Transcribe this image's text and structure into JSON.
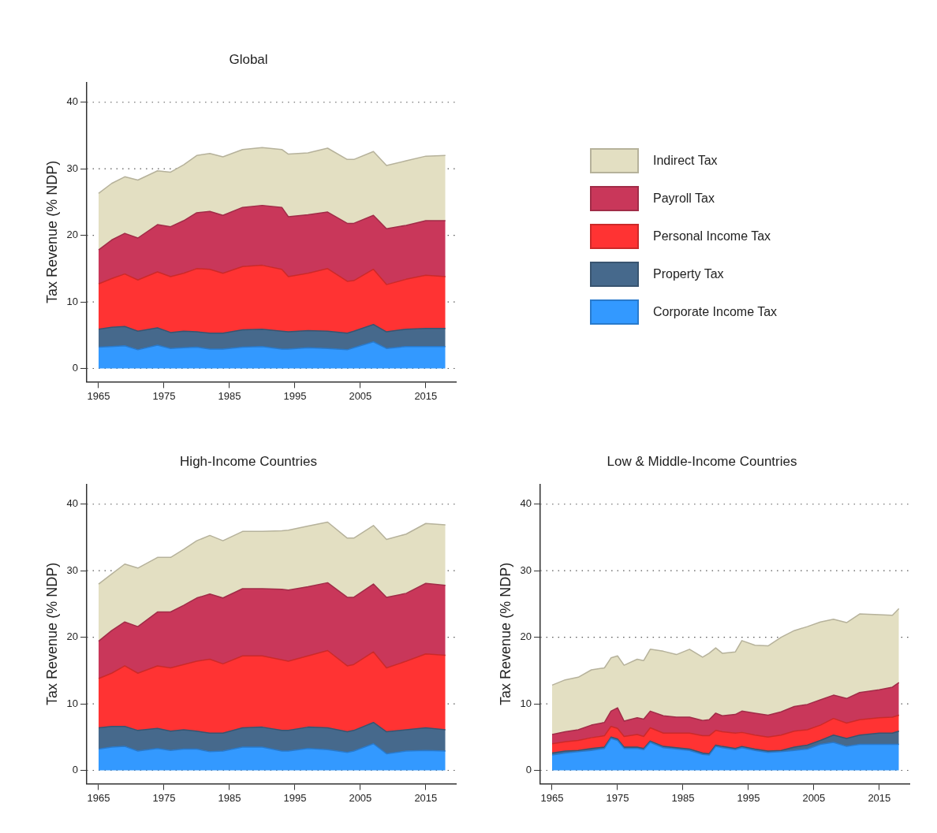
{
  "chart_data": [
    {
      "type": "area",
      "stacked": true,
      "title": "Global",
      "ylabel": "Tax Revenue (% NDP)",
      "legend": "right",
      "grid": "y",
      "xlim": [
        1963.2,
        2019.6
      ],
      "ylim": [
        -2,
        43
      ],
      "xticks": [
        1965,
        1975,
        1985,
        1995,
        2005,
        2015
      ],
      "yticks": [
        0,
        10,
        20,
        30,
        40
      ],
      "x": [
        1965,
        1967,
        1969,
        1971,
        1974,
        1976,
        1978,
        1980,
        1982,
        1984,
        1987,
        1990,
        1993,
        1994,
        1997,
        2000,
        2003,
        2004,
        2007,
        2009,
        2012,
        2015,
        2018
      ],
      "series": [
        {
          "name": "Corporate Income Tax",
          "color": "#3399ff",
          "values": [
            3.2,
            3.3,
            3.4,
            2.8,
            3.5,
            3.0,
            3.1,
            3.2,
            2.9,
            2.9,
            3.2,
            3.3,
            2.9,
            2.9,
            3.1,
            3.0,
            2.8,
            3.1,
            4.0,
            3.0,
            3.3,
            3.3,
            3.3
          ]
        },
        {
          "name": "Property Tax",
          "color": "#46698c",
          "values": [
            2.7,
            2.9,
            2.9,
            2.8,
            2.6,
            2.4,
            2.5,
            2.3,
            2.4,
            2.4,
            2.6,
            2.6,
            2.7,
            2.6,
            2.6,
            2.6,
            2.5,
            2.5,
            2.6,
            2.5,
            2.6,
            2.7,
            2.7
          ]
        },
        {
          "name": "Personal Income Tax",
          "color": "#ff3333",
          "values": [
            6.8,
            7.3,
            7.9,
            7.7,
            8.4,
            8.4,
            8.7,
            9.5,
            9.6,
            9.0,
            9.5,
            9.6,
            9.3,
            8.3,
            8.6,
            9.4,
            7.8,
            7.6,
            8.3,
            7.1,
            7.5,
            8.0,
            7.8
          ]
        },
        {
          "name": "Payroll Tax",
          "color": "#c9375a",
          "values": [
            5.1,
            5.8,
            6.1,
            6.3,
            7.1,
            7.5,
            7.9,
            8.4,
            8.7,
            8.7,
            8.9,
            9.0,
            9.3,
            9.0,
            8.8,
            8.5,
            8.7,
            8.6,
            8.1,
            8.4,
            8.1,
            8.2,
            8.4
          ]
        },
        {
          "name": "Indirect Tax",
          "color": "#e3dfc2",
          "values": [
            8.5,
            8.5,
            8.5,
            8.7,
            8.1,
            8.2,
            8.4,
            8.6,
            8.7,
            8.8,
            8.7,
            8.7,
            8.7,
            9.4,
            9.3,
            9.6,
            9.6,
            9.6,
            9.6,
            9.5,
            9.7,
            9.7,
            9.8
          ]
        }
      ]
    },
    {
      "type": "area",
      "stacked": true,
      "title": "High-Income Countries",
      "ylabel": "Tax Revenue (% NDP)",
      "grid": "y",
      "xlim": [
        1963.2,
        2019.6
      ],
      "ylim": [
        -2,
        43
      ],
      "xticks": [
        1965,
        1975,
        1985,
        1995,
        2005,
        2015
      ],
      "yticks": [
        0,
        10,
        20,
        30,
        40
      ],
      "x": [
        1965,
        1967,
        1969,
        1971,
        1974,
        1976,
        1978,
        1980,
        1982,
        1984,
        1987,
        1990,
        1993,
        1994,
        1997,
        2000,
        2003,
        2004,
        2007,
        2009,
        2012,
        2015,
        2018
      ],
      "series": [
        {
          "color": "#3399ff",
          "values": [
            3.2,
            3.5,
            3.6,
            2.9,
            3.3,
            3.0,
            3.2,
            3.2,
            2.8,
            2.9,
            3.5,
            3.5,
            2.9,
            2.9,
            3.3,
            3.1,
            2.7,
            2.9,
            4.0,
            2.5,
            2.9,
            3.0,
            2.9
          ]
        },
        {
          "color": "#46698c",
          "values": [
            3.2,
            3.1,
            3.0,
            3.1,
            3.0,
            2.9,
            2.9,
            2.7,
            2.8,
            2.7,
            2.9,
            3.0,
            3.1,
            3.1,
            3.2,
            3.3,
            3.1,
            3.1,
            3.2,
            3.3,
            3.2,
            3.4,
            3.2
          ]
        },
        {
          "color": "#ff3333",
          "values": [
            7.4,
            8.0,
            9.1,
            8.6,
            9.4,
            9.5,
            9.8,
            10.5,
            11.1,
            10.4,
            10.8,
            10.7,
            10.6,
            10.4,
            10.7,
            11.6,
            9.9,
            9.9,
            10.6,
            9.6,
            10.3,
            11.1,
            11.2
          ]
        },
        {
          "color": "#c9375a",
          "values": [
            5.6,
            6.4,
            6.6,
            7.0,
            8.1,
            8.4,
            8.9,
            9.5,
            9.8,
            9.9,
            10.1,
            10.1,
            10.6,
            10.7,
            10.4,
            10.2,
            10.3,
            10.1,
            10.2,
            10.6,
            10.2,
            10.6,
            10.5
          ]
        },
        {
          "color": "#e3dfc2",
          "values": [
            8.6,
            8.5,
            8.7,
            8.8,
            8.2,
            8.2,
            8.4,
            8.6,
            8.8,
            8.6,
            8.6,
            8.6,
            8.8,
            9.0,
            9.1,
            9.1,
            8.9,
            8.9,
            8.8,
            8.7,
            8.9,
            9.0,
            9.1
          ]
        }
      ]
    },
    {
      "type": "area",
      "stacked": true,
      "title": "Low & Middle-Income Countries",
      "ylabel": "Tax Revenue (% NDP)",
      "grid": "y",
      "xlim": [
        1963.2,
        2019.6
      ],
      "ylim": [
        -2,
        43
      ],
      "xticks": [
        1965,
        1975,
        1985,
        1995,
        2005,
        2015
      ],
      "yticks": [
        0,
        10,
        20,
        30,
        40
      ],
      "x": [
        1965,
        1967,
        1969,
        1971,
        1973,
        1974,
        1975,
        1976,
        1978,
        1979,
        1980,
        1982,
        1984,
        1986,
        1988,
        1989,
        1990,
        1991,
        1993,
        1994,
        1996,
        1998,
        2000,
        2002,
        2004,
        2006,
        2008,
        2010,
        2012,
        2015,
        2017,
        2018
      ],
      "series": [
        {
          "color": "#3399ff",
          "values": [
            2.3,
            2.6,
            2.8,
            3.0,
            3.3,
            4.8,
            4.5,
            3.3,
            3.3,
            3.1,
            4.2,
            3.4,
            3.2,
            3.0,
            2.4,
            2.3,
            3.6,
            3.4,
            3.1,
            3.4,
            3.0,
            2.7,
            2.8,
            3.0,
            3.2,
            3.9,
            4.2,
            3.6,
            3.9,
            3.9,
            3.9,
            3.9
          ]
        },
        {
          "color": "#46698c",
          "values": [
            0.3,
            0.3,
            0.2,
            0.3,
            0.2,
            0.2,
            0.2,
            0.2,
            0.2,
            0.2,
            0.2,
            0.2,
            0.2,
            0.2,
            0.2,
            0.2,
            0.2,
            0.2,
            0.2,
            0.2,
            0.2,
            0.2,
            0.2,
            0.5,
            0.6,
            0.6,
            1.1,
            1.2,
            1.4,
            1.7,
            1.7,
            2.0
          ]
        },
        {
          "color": "#ff3333",
          "values": [
            1.4,
            1.4,
            1.5,
            1.6,
            1.7,
            1.6,
            1.6,
            1.6,
            1.9,
            1.8,
            2.0,
            2.0,
            2.2,
            2.4,
            2.6,
            2.7,
            2.2,
            2.2,
            2.3,
            2.1,
            2.1,
            2.1,
            2.3,
            2.4,
            2.3,
            2.3,
            2.5,
            2.3,
            2.3,
            2.3,
            2.4,
            2.4
          ]
        },
        {
          "color": "#c9375a",
          "values": [
            1.4,
            1.5,
            1.6,
            1.9,
            2.0,
            2.3,
            3.1,
            2.3,
            2.5,
            2.6,
            2.5,
            2.6,
            2.4,
            2.4,
            2.3,
            2.4,
            2.6,
            2.4,
            2.8,
            3.2,
            3.3,
            3.3,
            3.5,
            3.7,
            3.8,
            3.8,
            3.5,
            3.7,
            4.1,
            4.2,
            4.5,
            4.9
          ]
        },
        {
          "color": "#e3dfc2",
          "values": [
            7.4,
            7.8,
            7.9,
            8.3,
            8.2,
            8.0,
            7.8,
            8.4,
            8.8,
            8.8,
            9.3,
            9.7,
            9.4,
            10.2,
            9.5,
            10.0,
            9.8,
            9.4,
            9.4,
            10.6,
            10.2,
            10.4,
            11.2,
            11.4,
            11.7,
            11.7,
            11.4,
            11.4,
            11.8,
            11.3,
            10.8,
            11.1
          ]
        }
      ]
    }
  ]
}
